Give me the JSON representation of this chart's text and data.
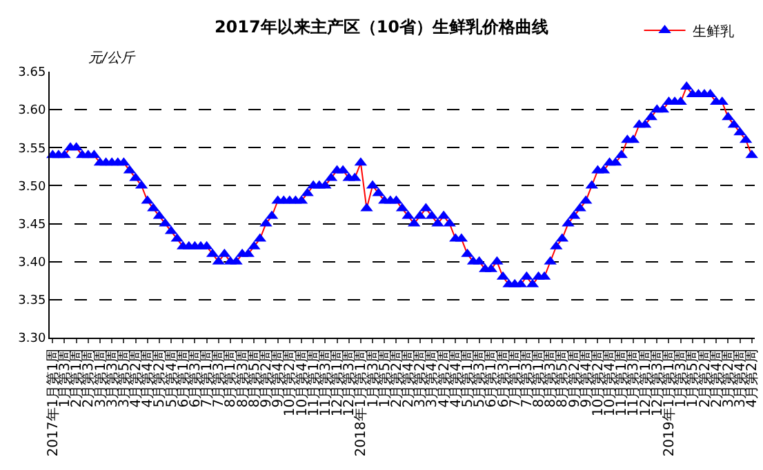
{
  "chart_data": {
    "type": "line",
    "title": "2017年以来主产区（10省）生鲜乳价格曲线",
    "ylabel": "元/公斤",
    "categories": [
      "2017年1月第1周",
      null,
      "1月第3周",
      null,
      "2月第1周",
      null,
      "2月第3周",
      null,
      "3月第1周",
      null,
      "3月第3周",
      null,
      "3月第5周",
      null,
      "4月第2周",
      null,
      "4月第4周",
      null,
      "5月第2周",
      null,
      "5月第4周",
      null,
      "6月第1周",
      null,
      "6月第3周",
      null,
      "7月第1周",
      null,
      "7月第3周",
      null,
      "8月第1周",
      null,
      "8月第3周",
      null,
      "8月第5周",
      null,
      "9月第2周",
      null,
      "9月第4周",
      null,
      "10月第2周",
      null,
      "10月第4周",
      null,
      "11月第1周",
      null,
      "11月第3周",
      null,
      "12月第1周",
      null,
      "12月第3周",
      null,
      "2018年1月第1周",
      null,
      "1月第3周",
      null,
      "1月第5周",
      null,
      "2月第2周",
      null,
      "2月第4周",
      null,
      "3月第2周",
      null,
      "3月第4周",
      null,
      "4月第2周",
      null,
      "4月第4周",
      null,
      "5月第1周",
      null,
      "5月第3周",
      null,
      "6月第1周",
      null,
      "6月第3周",
      null,
      "7月第1周",
      null,
      "7月第3周",
      null,
      "8月第1周",
      null,
      "8月第3周",
      null,
      "8月第5周",
      null,
      "9月第2周",
      null,
      "9月第4周",
      null,
      "10月第2周",
      null,
      "10月第4周",
      null,
      "11月第1周",
      null,
      "11月第3周",
      null,
      "12月第1周",
      null,
      "12月第3周",
      null,
      "2019年1月第1周",
      null,
      "1月第3周",
      null,
      "1月第5周",
      null,
      "2月第2周",
      null,
      "2月第4周",
      null,
      "3月第2周",
      null,
      "3月第4周",
      null,
      "4月第2周"
    ],
    "series": [
      {
        "name": "生鲜乳",
        "color": "#ff0000",
        "colors": [
          "#0000ff",
          "#0000ff",
          "#0000ff",
          "#0000ff",
          "#0000ff",
          "#0000ff",
          "#0000ff",
          "#0000ff",
          "#0000ff",
          "#0000ff",
          "#0000ff",
          "#0000ff",
          "#0000ff",
          "#0000ff",
          "#0000ff",
          "#0000ff",
          "#0000ff",
          "#0000ff",
          "#0000ff",
          "#0000ff",
          "#0000ff",
          "#0000ff",
          "#0000ff",
          "#0000ff",
          "#0000ff",
          "#0000ff",
          "#0000ff",
          "#0000ff",
          "#0000ff",
          "#0000ff",
          "#0000ff",
          "#0000ff",
          "#0000ff",
          "#0000ff",
          "#0000ff",
          "#0000ff",
          "#0000ff",
          "#0000ff",
          "#0000ff",
          "#0000ff",
          "#0000ff",
          "#0000ff",
          "#0000ff",
          "#0000ff",
          "#0000ff",
          "#0000ff",
          "#0000ff",
          "#0000ff",
          "#0000ff",
          "#0000ff",
          "#0000ff",
          "#0000ff",
          "#0000ff",
          "#0000ff",
          "#0000ff",
          "#0000ff",
          "#0000ff",
          "#0000ff",
          "#0000ff",
          "#0000ff",
          "#0000ff",
          "#0000ff",
          "#0000ff",
          "#0000ff",
          "#0000ff",
          "#0000ff",
          "#0000ff",
          "#0000ff",
          "#0000ff",
          "#0000ff",
          "#0000ff",
          "#0000ff",
          "#0000ff",
          "#0000ff",
          "#0000ff",
          "#0000ff",
          "#0000ff",
          "#0000ff",
          "#0000ff",
          "#0000ff",
          "#0000ff",
          "#0000ff",
          "#0000ff",
          "#0000ff",
          "#0000ff",
          "#0000ff",
          "#0000ff",
          "#0000ff",
          "#0000ff",
          "#0000ff",
          "#0000ff",
          "#0000ff",
          "#0000ff",
          "#0000ff",
          "#0000ff",
          "#0000ff",
          "#0000ff",
          "#0000ff",
          "#0000ff",
          "#0000ff",
          "#0000ff",
          "#0000ff",
          "#0000ff",
          "#0000ff",
          "#0000ff",
          "#0000ff",
          "#0000ff",
          "#0000ff",
          "#0000ff",
          "#0000ff",
          "#0000ff",
          "#0000ff",
          "#0000ff",
          "#0000ff",
          "#0000ff",
          "#0000ff",
          "#0000ff",
          "#0000ff",
          "#0000ff"
        ],
        "values": [
          3.54,
          3.54,
          3.54,
          3.55,
          3.55,
          3.54,
          3.54,
          3.54,
          3.53,
          3.53,
          3.53,
          3.53,
          3.53,
          3.52,
          3.51,
          3.5,
          3.48,
          3.47,
          3.46,
          3.45,
          3.44,
          3.43,
          3.42,
          3.42,
          3.42,
          3.42,
          3.42,
          3.41,
          3.4,
          3.41,
          3.4,
          3.4,
          3.41,
          3.41,
          3.42,
          3.43,
          3.45,
          3.46,
          3.48,
          3.48,
          3.48,
          3.48,
          3.48,
          3.49,
          3.5,
          3.5,
          3.5,
          3.51,
          3.52,
          3.52,
          3.51,
          3.51,
          3.53,
          3.47,
          3.5,
          3.49,
          3.48,
          3.48,
          3.48,
          3.47,
          3.46,
          3.45,
          3.46,
          3.47,
          3.46,
          3.45,
          3.46,
          3.45,
          3.43,
          3.43,
          3.41,
          3.4,
          3.4,
          3.39,
          3.39,
          3.4,
          3.38,
          3.37,
          3.37,
          3.37,
          3.38,
          3.37,
          3.38,
          3.38,
          3.4,
          3.42,
          3.43,
          3.45,
          3.46,
          3.47,
          3.48,
          3.5,
          3.52,
          3.52,
          3.53,
          3.53,
          3.54,
          3.56,
          3.56,
          3.58,
          3.58,
          3.59,
          3.6,
          3.6,
          3.61,
          3.61,
          3.61,
          3.63,
          3.62,
          3.62,
          3.62,
          3.62,
          3.61,
          3.61,
          3.59,
          3.58,
          3.57,
          3.56,
          3.54
        ]
      }
    ],
    "ylim": [
      3.3,
      3.65
    ],
    "yticks": [
      {
        "value": 3.3,
        "label": "3.30"
      },
      {
        "value": 3.35,
        "label": "3.35"
      },
      {
        "value": 3.4,
        "label": "3.40"
      },
      {
        "value": 3.45,
        "label": "3.45"
      },
      {
        "value": 3.5,
        "label": "3.50"
      },
      {
        "value": 3.55,
        "label": "3.55"
      },
      {
        "value": 3.6,
        "label": "3.60"
      },
      {
        "value": 3.65,
        "label": "3.65"
      }
    ],
    "grid": "y",
    "legend": "top right",
    "marker": "triangle",
    "line_style": "solid"
  }
}
